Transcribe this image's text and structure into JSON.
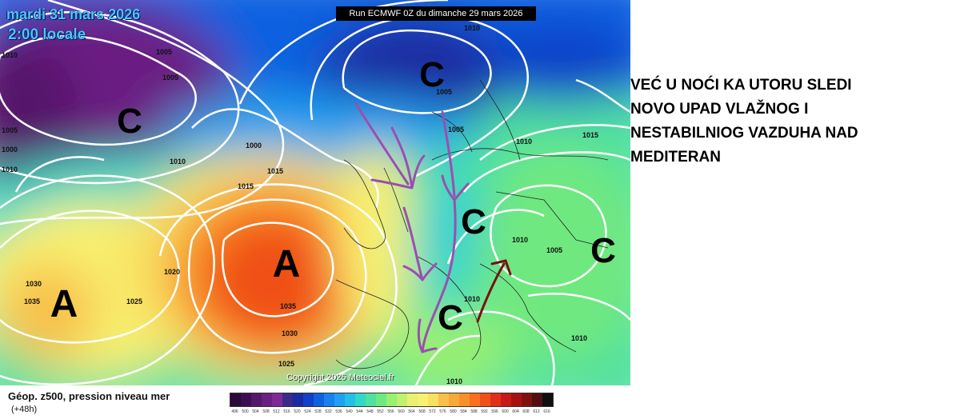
{
  "map": {
    "date_label": "mardi 31 mars 2026",
    "time_label": "2:00 locale",
    "run_label": "Run ECMWF 0Z du dimanche 29 mars 2026",
    "copyright": "Copyright 2026 Meteociel.fr",
    "pressure_centers": [
      {
        "label": "C",
        "kind": "low"
      },
      {
        "label": "C",
        "kind": "low"
      },
      {
        "label": "A",
        "kind": "high"
      },
      {
        "label": "A",
        "kind": "high"
      },
      {
        "label": "C",
        "kind": "low"
      },
      {
        "label": "C",
        "kind": "low"
      },
      {
        "label": "C",
        "kind": "low"
      }
    ],
    "isobar_labels": [
      "1010",
      "1005",
      "1005",
      "1000",
      "1000",
      "1005",
      "1010",
      "1010",
      "1015",
      "1015",
      "1020",
      "1025",
      "1030",
      "1035",
      "1030",
      "1035",
      "1025",
      "1005",
      "1010",
      "1005",
      "1010",
      "1015",
      "1005",
      "1010",
      "1010",
      "1010",
      "1010"
    ],
    "drawn_overlay_colors": {
      "trough_lines": "#9b4fb0",
      "arrow": "#7a1010"
    }
  },
  "legend": {
    "title": "Géop. z500, pression niveau mer",
    "subtitle": "(+48h)",
    "scale_labels": [
      "496",
      "500",
      "504",
      "508",
      "512",
      "516",
      "520",
      "524",
      "528",
      "532",
      "536",
      "540",
      "544",
      "548",
      "552",
      "556",
      "560",
      "564",
      "568",
      "572",
      "576",
      "580",
      "584",
      "588",
      "592",
      "596",
      "600",
      "604",
      "608",
      "612",
      "616"
    ],
    "scale_colors": [
      "#2a0a3a",
      "#3d0f52",
      "#55186b",
      "#6b1f82",
      "#7e2a95",
      "#3a2a8a",
      "#1a2aa0",
      "#1040c8",
      "#1060e0",
      "#1a80f0",
      "#20a0f0",
      "#20c0e8",
      "#30d8c8",
      "#50e0a0",
      "#70e880",
      "#98f070",
      "#c0f070",
      "#e8f070",
      "#f8f070",
      "#f8e060",
      "#f8c048",
      "#f8a838",
      "#f89028",
      "#f87020",
      "#f05018",
      "#e03018",
      "#c81818",
      "#a81010",
      "#801010",
      "#501010",
      "#101010"
    ]
  },
  "annotation": {
    "lines": [
      "VEĆ U NOĆI KA UTORU SLEDI",
      "NOVO UPAD VLAŽNOG I",
      "NESTABILNIOG VAZDUHA NAD",
      "MEDITERAN"
    ]
  }
}
